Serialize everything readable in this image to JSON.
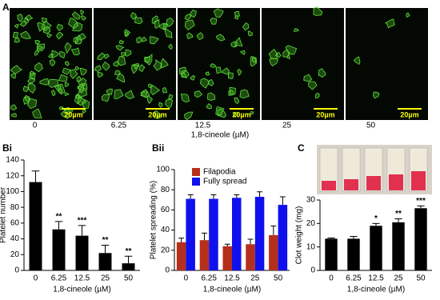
{
  "panel_a": {
    "label": "A",
    "scale_bar": "20µm",
    "concentrations": [
      "0",
      "6.25",
      "12.5",
      "25",
      "50"
    ],
    "xlabel": "1,8-cineole (µM)"
  },
  "chart_data": [
    {
      "type": "bar",
      "label": "Bi",
      "categories": [
        "0",
        "6.25",
        "12.5",
        "25",
        "50"
      ],
      "values": [
        112,
        52,
        44,
        22,
        9
      ],
      "errors": [
        14,
        10,
        13,
        10,
        9
      ],
      "significance": [
        null,
        "**",
        "***",
        "**",
        "**"
      ],
      "color": "#000000",
      "ylabel": "Platelet number",
      "xlabel": "1,8-cineole (µM)",
      "ylim": [
        0,
        140
      ],
      "yticks": [
        0,
        20,
        40,
        60,
        80,
        100,
        120,
        140
      ]
    },
    {
      "type": "bar",
      "label": "Bii",
      "categories": [
        "0",
        "6.25",
        "12.5",
        "25",
        "50"
      ],
      "series": [
        {
          "name": "Filapodia",
          "color": "#b5301c",
          "values": [
            28,
            30,
            24,
            26,
            35
          ],
          "errors": [
            4,
            7,
            2,
            5,
            9
          ]
        },
        {
          "name": "Fully spread",
          "color": "#1010ee",
          "values": [
            71,
            71,
            72,
            73,
            65
          ],
          "errors": [
            4,
            4,
            3,
            5,
            8
          ]
        }
      ],
      "ylabel": "Platelet spreading (%)",
      "xlabel": "1,8-cineole (µM)",
      "ylim": [
        0,
        100
      ],
      "yticks": [
        0,
        20,
        40,
        60,
        80,
        100
      ],
      "legend": "top"
    },
    {
      "type": "bar",
      "label": "C",
      "categories": [
        "0",
        "6.25",
        "12.5",
        "25",
        "50"
      ],
      "values": [
        13.5,
        13.5,
        19,
        20.5,
        26.5
      ],
      "errors": [
        0.3,
        1,
        1,
        1.5,
        1
      ],
      "significance": [
        null,
        null,
        "*",
        "**",
        "***"
      ],
      "color": "#000000",
      "ylabel": "Clot weight (mg)",
      "xlabel": "1,8-cineole (µM)",
      "ylim": [
        0,
        30
      ],
      "yticks": [
        0,
        10,
        20,
        30
      ]
    }
  ]
}
